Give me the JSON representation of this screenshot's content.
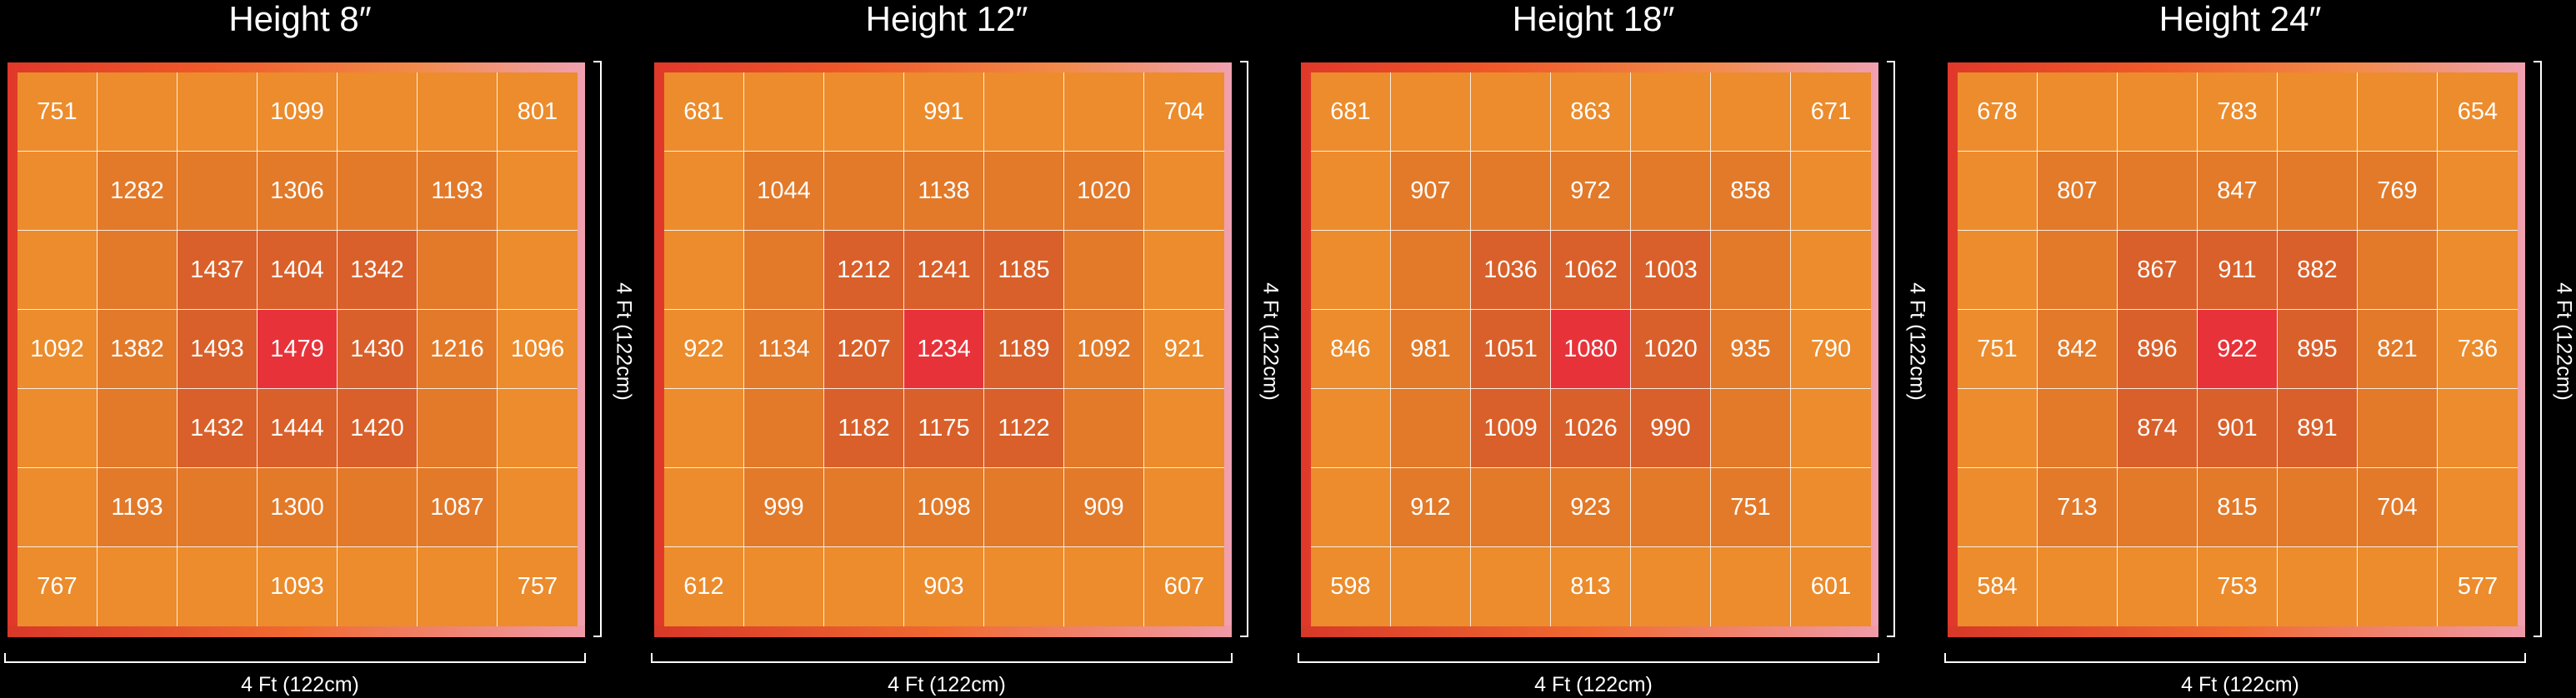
{
  "chart_data": [
    {
      "type": "heatmap",
      "title": "Height 8″",
      "xlabel": "4 Ft (122cm)",
      "ylabel": "4 Ft (122cm)",
      "grid_size": [
        7,
        7
      ],
      "values": [
        [
          751,
          null,
          null,
          1099,
          null,
          null,
          801
        ],
        [
          null,
          1282,
          null,
          1306,
          null,
          1193,
          null
        ],
        [
          null,
          null,
          1437,
          1404,
          1342,
          null,
          null
        ],
        [
          1092,
          1382,
          1493,
          1479,
          1430,
          1216,
          1096
        ],
        [
          null,
          null,
          1432,
          1444,
          1420,
          null,
          null
        ],
        [
          null,
          1193,
          null,
          1300,
          null,
          1087,
          null
        ],
        [
          767,
          null,
          null,
          1093,
          null,
          null,
          757
        ]
      ]
    },
    {
      "type": "heatmap",
      "title": "Height 12″",
      "xlabel": "4 Ft (122cm)",
      "ylabel": "4 Ft (122cm)",
      "grid_size": [
        7,
        7
      ],
      "values": [
        [
          681,
          null,
          null,
          991,
          null,
          null,
          704
        ],
        [
          null,
          1044,
          null,
          1138,
          null,
          1020,
          null
        ],
        [
          null,
          null,
          1212,
          1241,
          1185,
          null,
          null
        ],
        [
          922,
          1134,
          1207,
          1234,
          1189,
          1092,
          921
        ],
        [
          null,
          null,
          1182,
          1175,
          1122,
          null,
          null
        ],
        [
          null,
          999,
          null,
          1098,
          null,
          909,
          null
        ],
        [
          612,
          null,
          null,
          903,
          null,
          null,
          607
        ]
      ]
    },
    {
      "type": "heatmap",
      "title": "Height 18″",
      "xlabel": "4 Ft (122cm)",
      "ylabel": "4 Ft (122cm)",
      "grid_size": [
        7,
        7
      ],
      "values": [
        [
          681,
          null,
          null,
          863,
          null,
          null,
          671
        ],
        [
          null,
          907,
          null,
          972,
          null,
          858,
          null
        ],
        [
          null,
          null,
          1036,
          1062,
          1003,
          null,
          null
        ],
        [
          846,
          981,
          1051,
          1080,
          1020,
          935,
          790
        ],
        [
          null,
          null,
          1009,
          1026,
          990,
          null,
          null
        ],
        [
          null,
          912,
          null,
          923,
          null,
          751,
          null
        ],
        [
          598,
          null,
          null,
          813,
          null,
          null,
          601
        ]
      ]
    },
    {
      "type": "heatmap",
      "title": "Height 24″",
      "xlabel": "4 Ft (122cm)",
      "ylabel": "4 Ft (122cm)",
      "grid_size": [
        7,
        7
      ],
      "values": [
        [
          678,
          null,
          null,
          783,
          null,
          null,
          654
        ],
        [
          null,
          807,
          null,
          847,
          null,
          769,
          null
        ],
        [
          null,
          null,
          867,
          911,
          882,
          null,
          null
        ],
        [
          751,
          842,
          896,
          922,
          895,
          821,
          736
        ],
        [
          null,
          null,
          874,
          901,
          891,
          null,
          null
        ],
        [
          null,
          713,
          null,
          815,
          null,
          704,
          null
        ],
        [
          584,
          null,
          null,
          753,
          null,
          null,
          577
        ]
      ]
    }
  ],
  "colors": {
    "outer_cell": "#ec8c2c",
    "mid_ring": "#e27a2a",
    "inner_ring": "#d9602a",
    "center": "#e8323a",
    "background": "#000000"
  }
}
